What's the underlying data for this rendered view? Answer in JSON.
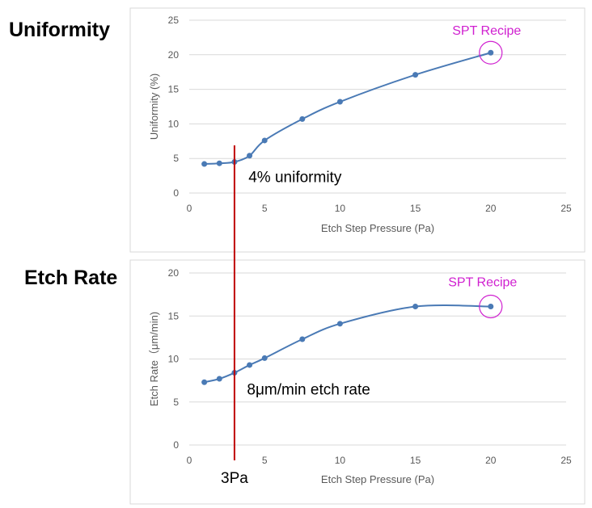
{
  "colors": {
    "series": "#4a7ab5",
    "marker_line": "#c00000",
    "highlight": "#d020d0"
  },
  "marker": {
    "pressure": 3,
    "label": "3Pa"
  },
  "chart_data": [
    {
      "type": "line",
      "side_label": "Uniformity",
      "xlabel": "Etch Step Pressure (Pa)",
      "ylabel": "Uniformity (%)",
      "xlim": [
        0,
        25
      ],
      "ylim": [
        0,
        25
      ],
      "xticks": [
        0,
        5,
        10,
        15,
        20,
        25
      ],
      "yticks": [
        0,
        5,
        10,
        15,
        20,
        25
      ],
      "grid": true,
      "series": [
        {
          "x": [
            1,
            2,
            3,
            4,
            5,
            7.5,
            10,
            15,
            20
          ],
          "y": [
            4.2,
            4.3,
            4.5,
            5.4,
            7.6,
            10.7,
            13.2,
            17.1,
            20.3
          ]
        }
      ],
      "annotations": [
        {
          "text": "4% uniformity",
          "x": 3.5,
          "y": 2.5
        },
        {
          "text": "SPT Recipe",
          "x": 20,
          "y": 20.3,
          "circled": true
        }
      ]
    },
    {
      "type": "line",
      "side_label": "Etch Rate",
      "xlabel": "Etch Step Pressure (Pa)",
      "ylabel": "Etch Rate（μm/min)",
      "xlim": [
        0,
        25
      ],
      "ylim": [
        0,
        20
      ],
      "xticks": [
        0,
        5,
        10,
        15,
        20,
        25
      ],
      "yticks": [
        0,
        5,
        10,
        15,
        20
      ],
      "grid": true,
      "series": [
        {
          "x": [
            1,
            2,
            3,
            4,
            5,
            7.5,
            10,
            15,
            20
          ],
          "y": [
            7.3,
            7.7,
            8.4,
            9.3,
            10.1,
            12.3,
            14.1,
            16.1,
            16.1
          ]
        }
      ],
      "annotations": [
        {
          "text": "8μm/min etch rate",
          "x": 3.4,
          "y": 7.0
        },
        {
          "text": "SPT Recipe",
          "x": 20,
          "y": 16.1,
          "circled": true
        }
      ]
    }
  ]
}
